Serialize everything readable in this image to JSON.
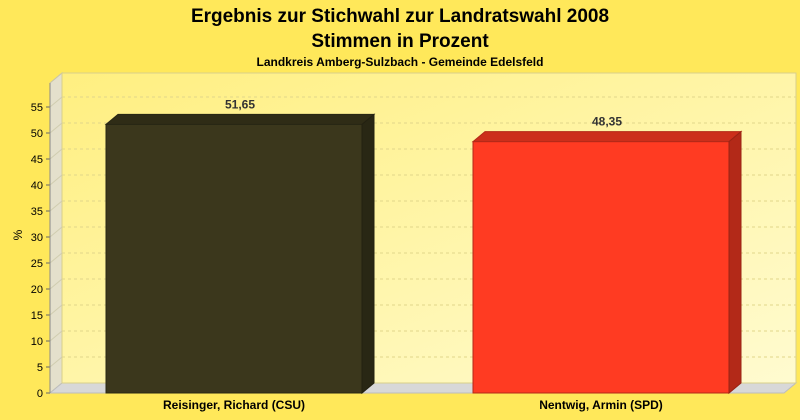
{
  "chart_data": {
    "type": "bar",
    "title": "Ergebnis zur Stichwahl zur Landratswahl 2008",
    "title_line2": "Stimmen in Prozent",
    "subtitle": "Landkreis Amberg-Sulzbach - Gemeinde Edelsfeld",
    "ylabel": "%",
    "xlabel": "",
    "ylim": [
      0,
      60
    ],
    "yticks": [
      0,
      5,
      10,
      15,
      20,
      25,
      30,
      35,
      40,
      45,
      50,
      55
    ],
    "categories": [
      "Reisinger, Richard (CSU)",
      "Nentwig, Armin (SPD)"
    ],
    "values": [
      51.65,
      48.35
    ],
    "value_labels": [
      "51,65",
      "48,35"
    ],
    "colors": [
      "#3b371c",
      "#ff3b22"
    ],
    "grid": true,
    "legend": "none"
  }
}
